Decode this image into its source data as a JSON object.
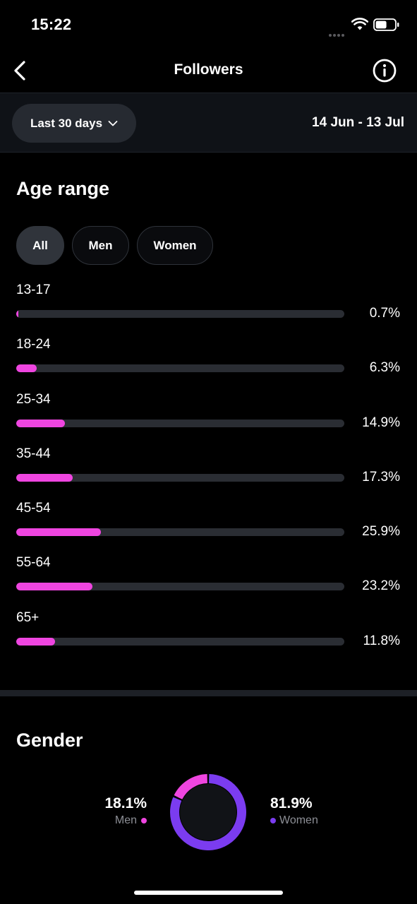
{
  "status_bar": {
    "time": "15:22"
  },
  "nav": {
    "title": "Followers",
    "back_icon": "chevron-left-icon",
    "info_icon": "info-circle-icon"
  },
  "filter": {
    "period_label": "Last 30 days",
    "date_range": "14 Jun - 13 Jul"
  },
  "age_range": {
    "title": "Age range",
    "segments": [
      {
        "label": "All",
        "selected": true
      },
      {
        "label": "Men",
        "selected": false
      },
      {
        "label": "Women",
        "selected": false
      }
    ],
    "rows": [
      {
        "label": "13-17",
        "percent_text": "0.7%",
        "value": 0.7
      },
      {
        "label": "18-24",
        "percent_text": "6.3%",
        "value": 6.3
      },
      {
        "label": "25-34",
        "percent_text": "14.9%",
        "value": 14.9
      },
      {
        "label": "35-44",
        "percent_text": "17.3%",
        "value": 17.3
      },
      {
        "label": "45-54",
        "percent_text": "25.9%",
        "value": 25.9
      },
      {
        "label": "55-64",
        "percent_text": "23.2%",
        "value": 23.2
      },
      {
        "label": "65+",
        "percent_text": "11.8%",
        "value": 11.8
      }
    ],
    "bar_scale_max": 100
  },
  "gender": {
    "title": "Gender",
    "men": {
      "percent_text": "18.1%",
      "label": "Men",
      "value": 18.1
    },
    "women": {
      "percent_text": "81.9%",
      "label": "Women",
      "value": 81.9
    }
  },
  "colors": {
    "accent_pink": "#ef45e0",
    "accent_purple": "#7b3cf0",
    "track": "#2a2d33",
    "background": "#000000"
  }
}
